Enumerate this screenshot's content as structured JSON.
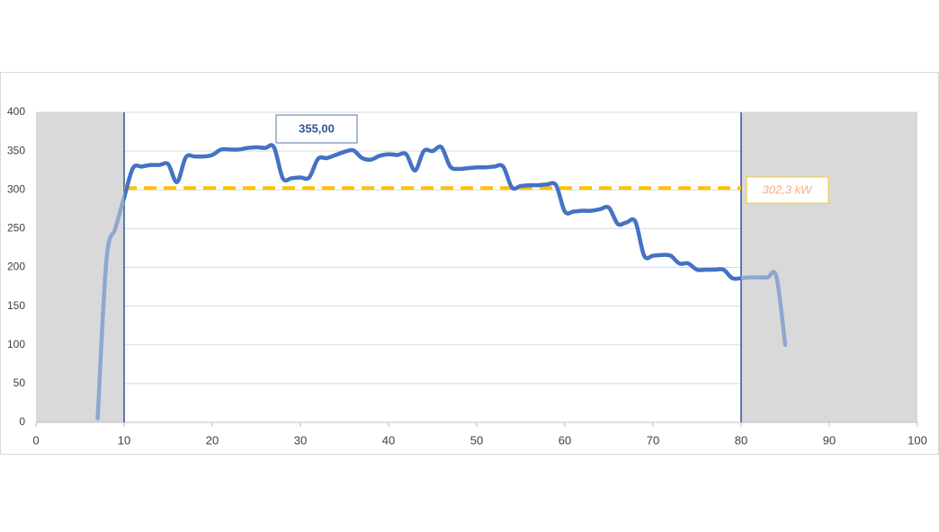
{
  "chart_data": {
    "type": "line",
    "x": [
      7,
      8,
      9,
      10,
      11,
      12,
      13,
      14,
      15,
      16,
      17,
      18,
      19,
      20,
      21,
      22,
      23,
      24,
      25,
      26,
      27,
      28,
      29,
      30,
      31,
      32,
      33,
      34,
      35,
      36,
      37,
      38,
      39,
      40,
      41,
      42,
      43,
      44,
      45,
      46,
      47,
      48,
      49,
      50,
      51,
      52,
      53,
      54,
      55,
      56,
      57,
      58,
      59,
      60,
      61,
      62,
      63,
      64,
      65,
      66,
      67,
      68,
      69,
      70,
      71,
      72,
      73,
      74,
      75,
      76,
      77,
      78,
      79,
      80,
      81,
      82,
      83,
      84,
      85
    ],
    "series": [
      {
        "color": "#4472c4",
        "faded_color": "#8fa6cf",
        "values": [
          5,
          210,
          250,
          290,
          328,
          330,
          332,
          332,
          333,
          310,
          342,
          343,
          343,
          345,
          352,
          352,
          352,
          354,
          355,
          354,
          355,
          315,
          315,
          316,
          316,
          340,
          341,
          345,
          349,
          351,
          341,
          339,
          344,
          346,
          345,
          346,
          325,
          350,
          350,
          355,
          330,
          327,
          328,
          329,
          329,
          330,
          330,
          303,
          305,
          306,
          306,
          307,
          306,
          272,
          272,
          273,
          273,
          275,
          277,
          256,
          258,
          259,
          215,
          215,
          216,
          215,
          205,
          205,
          197,
          197,
          197,
          197,
          186,
          186,
          187,
          187,
          187,
          188,
          100
        ]
      }
    ],
    "xlim": [
      0,
      100
    ],
    "xticks": [
      0,
      10,
      20,
      30,
      40,
      50,
      60,
      70,
      80,
      90,
      100
    ],
    "ylim": [
      0,
      400
    ],
    "yticks": [
      0,
      50,
      100,
      150,
      200,
      250,
      300,
      350,
      400
    ],
    "grid": true,
    "shaded_ranges": [
      [
        0,
        10
      ],
      [
        80,
        100
      ]
    ],
    "vlines": [
      10,
      80
    ],
    "hline": {
      "value": 302.3,
      "label": "302,3 kW",
      "color": "#ffc000"
    },
    "annotation": {
      "value": 355,
      "label": "355,00"
    }
  }
}
